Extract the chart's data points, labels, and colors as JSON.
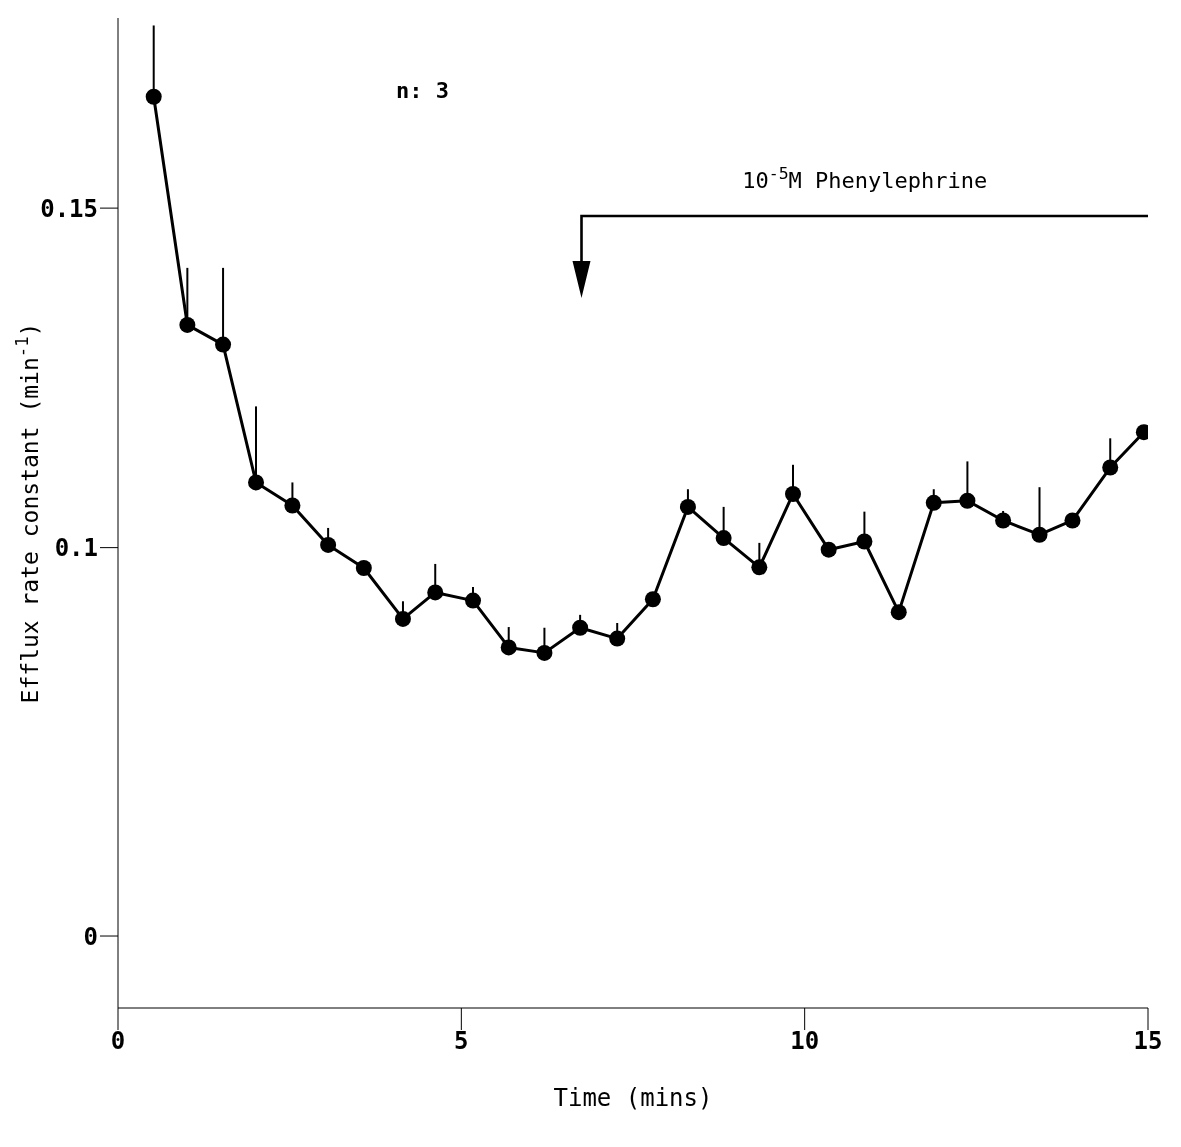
{
  "chart_data": {
    "type": "line",
    "xlabel": "Time (mins)",
    "ylabel": "Efflux rate constant (min$^{-1}$)",
    "x": [
      0.52,
      1.01,
      1.53,
      2.01,
      2.54,
      3.06,
      3.58,
      4.15,
      4.62,
      5.17,
      5.69,
      6.21,
      6.73,
      7.27,
      7.79,
      8.3,
      8.82,
      9.34,
      9.83,
      10.35,
      10.87,
      11.37,
      11.88,
      12.37,
      12.89,
      13.42,
      13.9,
      14.45,
      14.94
    ],
    "values": [
      0.1664,
      0.1328,
      0.1299,
      0.1096,
      0.1062,
      0.1004,
      0.097,
      0.0895,
      0.0934,
      0.0922,
      0.0853,
      0.0845,
      0.0882,
      0.0866,
      0.0924,
      0.106,
      0.1014,
      0.0971,
      0.1079,
      0.0997,
      0.1009,
      0.0905,
      0.1066,
      0.1069,
      0.104,
      0.1019,
      0.104,
      0.1118,
      0.117
    ],
    "errors": [
      [
        0.1664,
        0.1769
      ],
      [
        0.1328,
        0.1412
      ],
      [
        0.1299,
        0.1412
      ],
      [
        0.1096,
        0.1208
      ],
      [
        0.1062,
        0.1096
      ],
      [
        0.1004,
        0.1029
      ],
      null,
      [
        0.0895,
        0.0921
      ],
      [
        0.0934,
        0.0976
      ],
      [
        0.0922,
        0.0942
      ],
      [
        0.0853,
        0.0883
      ],
      [
        0.0845,
        0.0882
      ],
      [
        0.0882,
        0.0901
      ],
      [
        0.0866,
        0.0889
      ],
      [
        0.0924,
        0.0934
      ],
      [
        0.106,
        0.1086
      ],
      [
        0.1014,
        0.106
      ],
      [
        0.0971,
        0.1007
      ],
      [
        0.1079,
        0.1122
      ],
      null,
      [
        0.1009,
        0.1053
      ],
      null,
      [
        0.1066,
        0.1086
      ],
      [
        0.1069,
        0.1127
      ],
      [
        0.104,
        0.1054
      ],
      [
        0.1019,
        0.1089
      ],
      null,
      [
        0.1118,
        0.1161
      ],
      null
    ],
    "color": "#000000",
    "marker": "circle",
    "line_style": "solid",
    "grid": false,
    "legend": false,
    "xlim": [
      0,
      15
    ],
    "xticks": [
      0,
      5,
      10,
      15
    ],
    "ylim": [
      0.0322,
      0.178
    ],
    "yticks": [
      {
        "value": 0.0428,
        "label": "0"
      },
      0.1,
      0.15
    ],
    "annotations": [
      "n: 3",
      "10$^{-5}$M Phenylephrine"
    ]
  }
}
